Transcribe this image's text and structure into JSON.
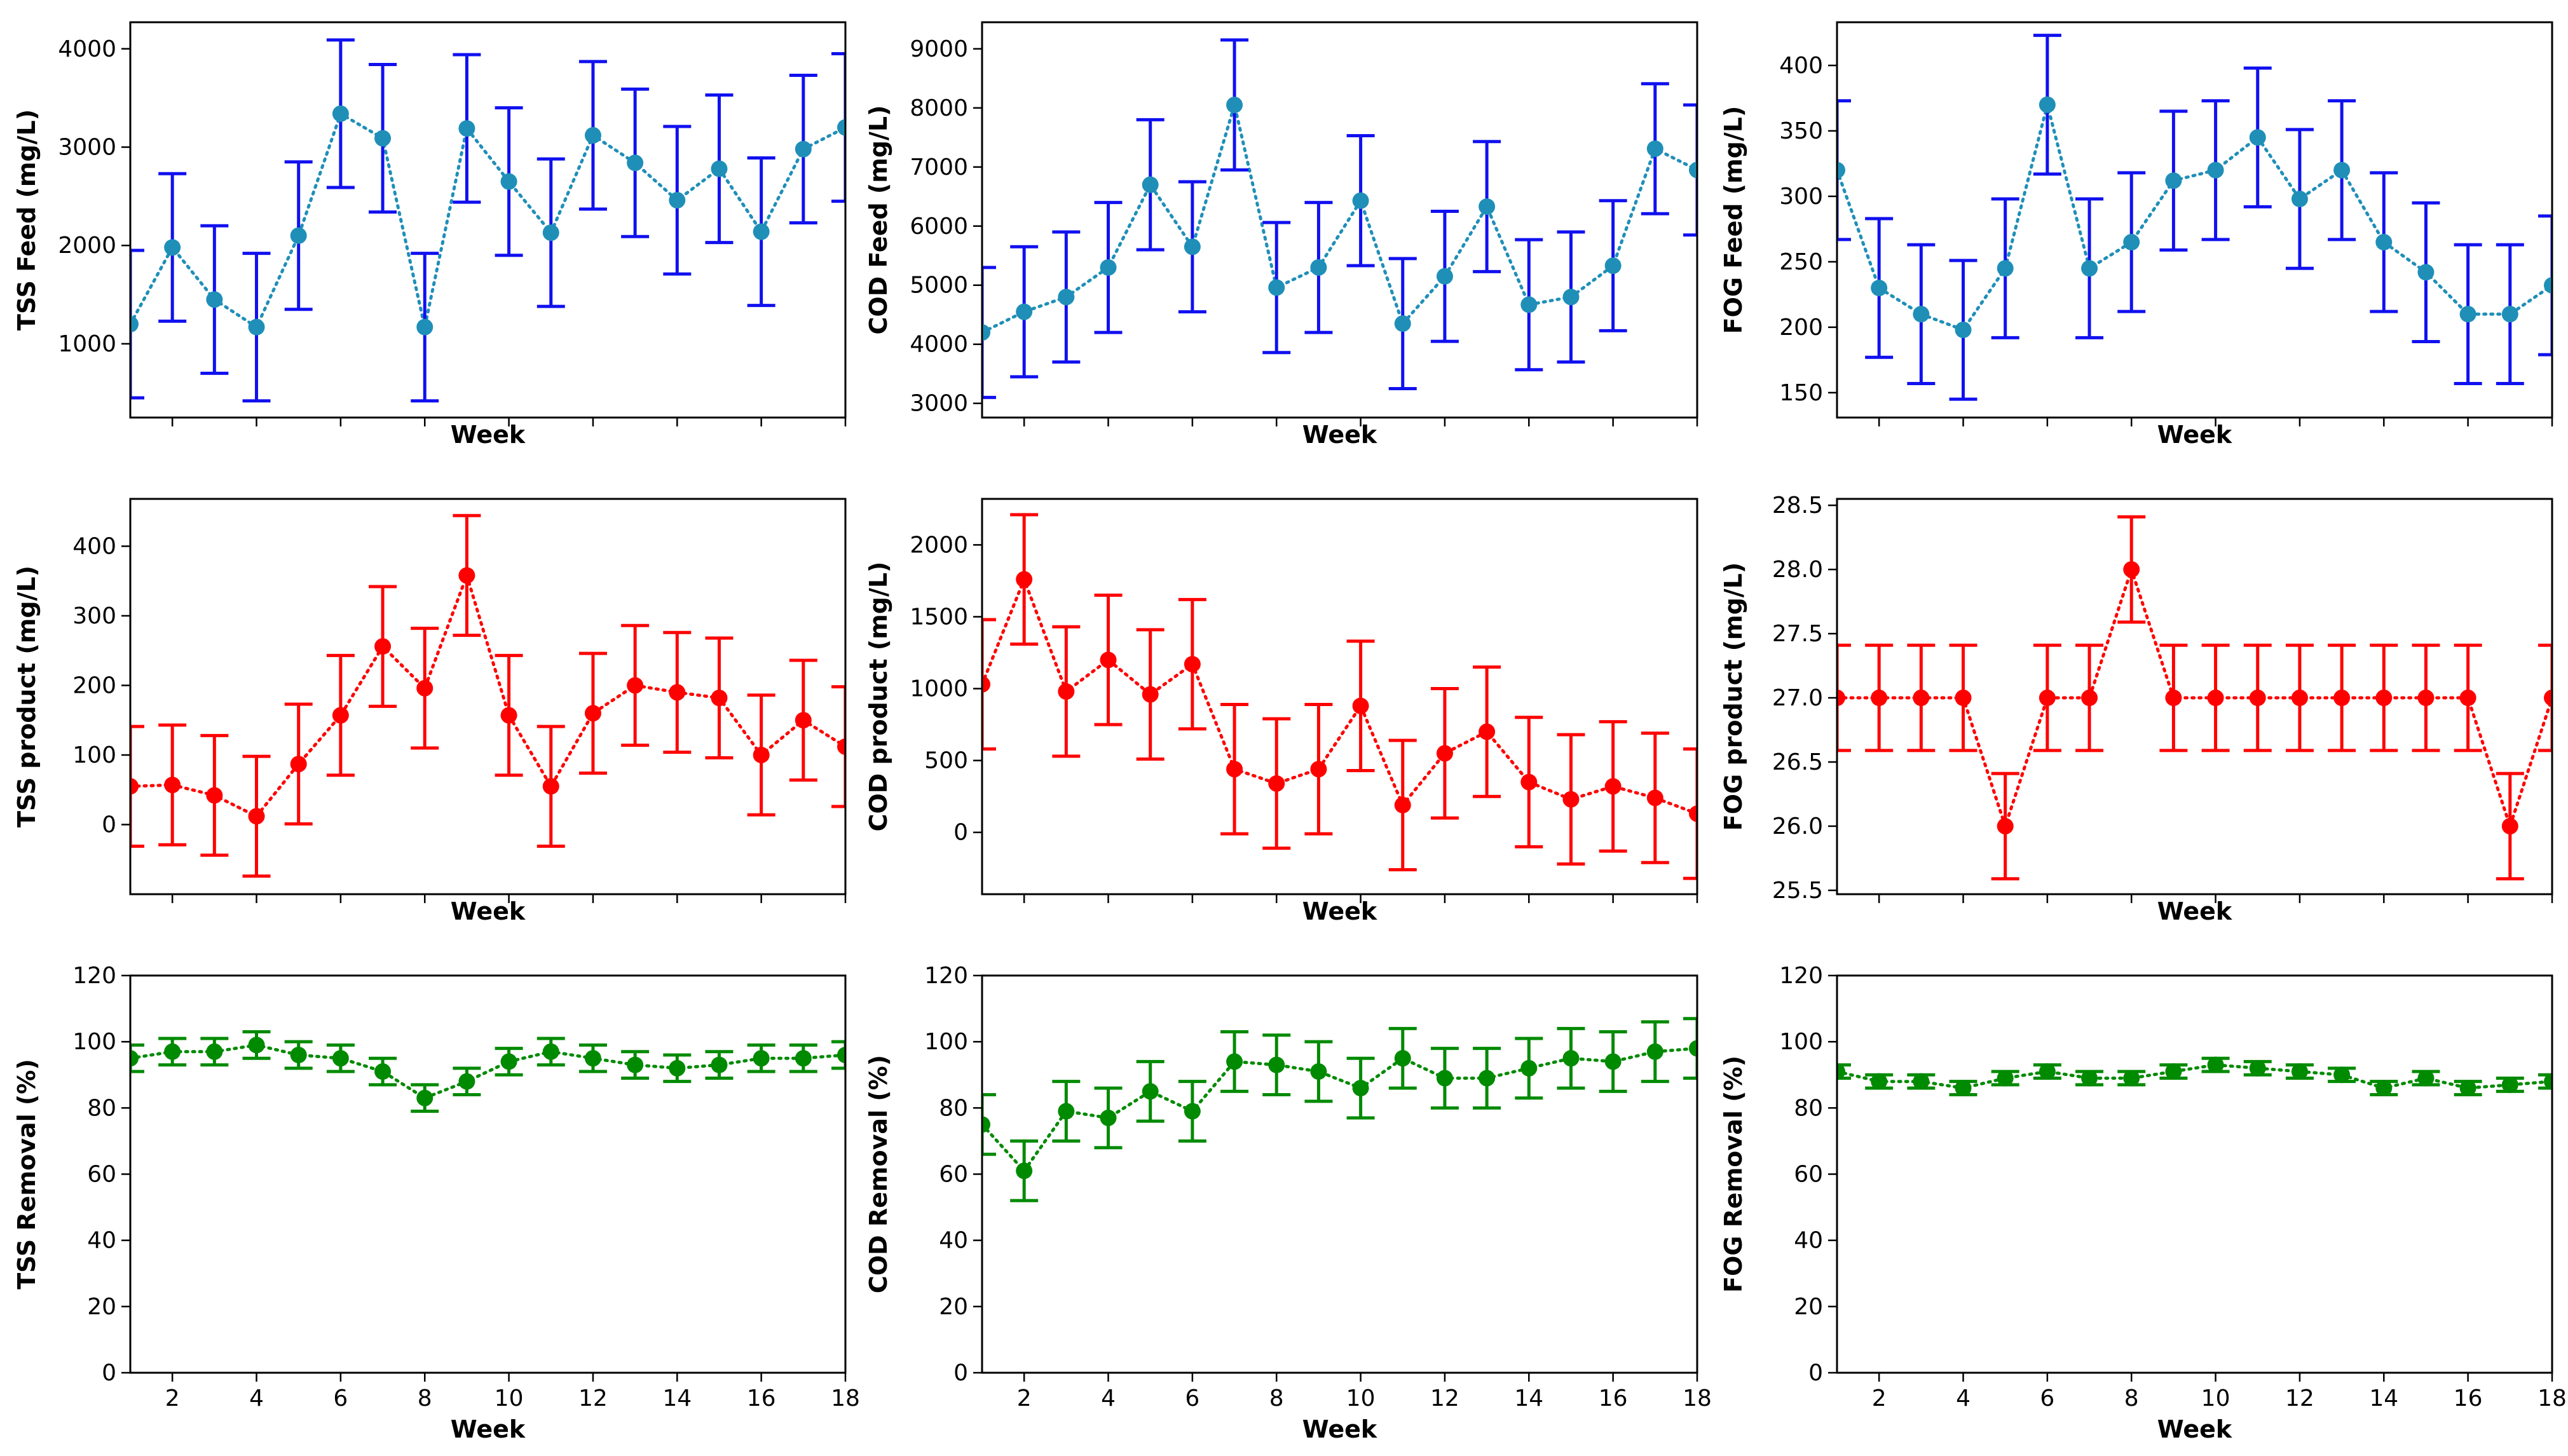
{
  "colors": {
    "feed_line": "#1f8fb8",
    "feed_error": "#1010f0",
    "product": "#ff0000",
    "removal": "#008a00"
  },
  "chart_data": [
    {
      "id": "tss-feed",
      "type": "line",
      "ylabel": "TSS Feed (mg/L)",
      "xlabel": "Week",
      "xlim": [
        1,
        18
      ],
      "ylim": [
        250,
        4270
      ],
      "yticks": [
        1000,
        2000,
        3000,
        4000
      ],
      "xticks": [
        2,
        4,
        6,
        8,
        10,
        12,
        14,
        16,
        18
      ],
      "show_xticklabels": false,
      "line_color": "#1f8fb8",
      "error_color": "#1010f0",
      "x": [
        1,
        2,
        3,
        4,
        5,
        6,
        7,
        8,
        9,
        10,
        11,
        12,
        13,
        14,
        15,
        16,
        17,
        18
      ],
      "values": [
        1200,
        1980,
        1450,
        1170,
        2100,
        3340,
        3090,
        1170,
        3190,
        2650,
        2130,
        3120,
        2840,
        2460,
        2780,
        2140,
        2980,
        3200
      ],
      "errors": [
        750,
        750,
        750,
        750,
        750,
        750,
        750,
        750,
        750,
        750,
        750,
        750,
        750,
        750,
        750,
        750,
        750,
        750
      ]
    },
    {
      "id": "cod-feed",
      "type": "line",
      "ylabel": "COD Feed (mg/L)",
      "xlabel": "Week",
      "xlim": [
        1,
        18
      ],
      "ylim": [
        2760,
        9450
      ],
      "yticks": [
        3000,
        4000,
        5000,
        6000,
        7000,
        8000,
        9000
      ],
      "xticks": [
        2,
        4,
        6,
        8,
        10,
        12,
        14,
        16,
        18
      ],
      "show_xticklabels": false,
      "line_color": "#1f8fb8",
      "error_color": "#1010f0",
      "x": [
        1,
        2,
        3,
        4,
        5,
        6,
        7,
        8,
        9,
        10,
        11,
        12,
        13,
        14,
        15,
        16,
        17,
        18
      ],
      "values": [
        4200,
        4550,
        4800,
        5300,
        6700,
        5650,
        8050,
        4960,
        5300,
        6430,
        4350,
        5150,
        6330,
        4670,
        4800,
        5330,
        7310,
        6950
      ],
      "errors": [
        1100,
        1100,
        1100,
        1100,
        1100,
        1100,
        1100,
        1100,
        1100,
        1100,
        1100,
        1100,
        1100,
        1100,
        1100,
        1100,
        1100,
        1100
      ]
    },
    {
      "id": "fog-feed",
      "type": "line",
      "ylabel": "FOG Feed (mg/L)",
      "xlabel": "Week",
      "xlim": [
        1,
        18
      ],
      "ylim": [
        131,
        433
      ],
      "yticks": [
        150,
        200,
        250,
        300,
        350,
        400
      ],
      "xticks": [
        2,
        4,
        6,
        8,
        10,
        12,
        14,
        16,
        18
      ],
      "show_xticklabels": false,
      "line_color": "#1f8fb8",
      "error_color": "#1010f0",
      "x": [
        1,
        2,
        3,
        4,
        5,
        6,
        7,
        8,
        9,
        10,
        11,
        12,
        13,
        14,
        15,
        16,
        17,
        18
      ],
      "values": [
        320,
        230,
        210,
        198,
        245,
        370,
        245,
        265,
        312,
        320,
        345,
        298,
        320,
        265,
        242,
        210,
        210,
        232
      ],
      "errors": [
        53,
        53,
        53,
        53,
        53,
        53,
        53,
        53,
        53,
        53,
        53,
        53,
        53,
        53,
        53,
        53,
        53,
        53
      ]
    },
    {
      "id": "tss-product",
      "type": "line",
      "ylabel": "TSS product (mg/L)",
      "xlabel": "Week",
      "xlim": [
        1,
        18
      ],
      "ylim": [
        -100,
        468
      ],
      "yticks": [
        0,
        100,
        200,
        300,
        400
      ],
      "xticks": [
        2,
        4,
        6,
        8,
        10,
        12,
        14,
        16,
        18
      ],
      "show_xticklabels": false,
      "line_color": "#ff0000",
      "error_color": "#ff0000",
      "x": [
        1,
        2,
        3,
        4,
        5,
        6,
        7,
        8,
        9,
        10,
        11,
        12,
        13,
        14,
        15,
        16,
        17,
        18
      ],
      "values": [
        55,
        57,
        42,
        12,
        87,
        157,
        256,
        196,
        358,
        157,
        55,
        160,
        200,
        190,
        182,
        100,
        150,
        112
      ],
      "errors": [
        86,
        86,
        86,
        86,
        86,
        86,
        86,
        86,
        86,
        86,
        86,
        86,
        86,
        86,
        86,
        86,
        86,
        86
      ]
    },
    {
      "id": "cod-product",
      "type": "line",
      "ylabel": "COD product (mg/L)",
      "xlabel": "Week",
      "xlim": [
        1,
        18
      ],
      "ylim": [
        -430,
        2320
      ],
      "yticks": [
        0,
        500,
        1000,
        1500,
        2000
      ],
      "xticks": [
        2,
        4,
        6,
        8,
        10,
        12,
        14,
        16,
        18
      ],
      "show_xticklabels": false,
      "line_color": "#ff0000",
      "error_color": "#ff0000",
      "x": [
        1,
        2,
        3,
        4,
        5,
        6,
        7,
        8,
        9,
        10,
        11,
        12,
        13,
        14,
        15,
        16,
        17,
        18
      ],
      "values": [
        1030,
        1760,
        980,
        1200,
        960,
        1170,
        440,
        340,
        440,
        880,
        190,
        550,
        700,
        350,
        230,
        320,
        240,
        130
      ],
      "errors": [
        450,
        450,
        450,
        450,
        450,
        450,
        450,
        450,
        450,
        450,
        450,
        450,
        450,
        450,
        450,
        450,
        450,
        450
      ]
    },
    {
      "id": "fog-product",
      "type": "line",
      "ylabel": "FOG product (mg/L)",
      "xlabel": "Week",
      "xlim": [
        1,
        18
      ],
      "ylim": [
        25.47,
        28.55
      ],
      "yticks": [
        25.5,
        26.0,
        26.5,
        27.0,
        27.5,
        28.0,
        28.5
      ],
      "ytick_labels": [
        "25.5",
        "26.0",
        "26.5",
        "27.0",
        "27.5",
        "28.0",
        "28.5"
      ],
      "xticks": [
        2,
        4,
        6,
        8,
        10,
        12,
        14,
        16,
        18
      ],
      "show_xticklabels": false,
      "line_color": "#ff0000",
      "error_color": "#ff0000",
      "x": [
        1,
        2,
        3,
        4,
        5,
        6,
        7,
        8,
        9,
        10,
        11,
        12,
        13,
        14,
        15,
        16,
        17,
        18
      ],
      "values": [
        27,
        27,
        27,
        27,
        26,
        27,
        27,
        28,
        27,
        27,
        27,
        27,
        27,
        27,
        27,
        27,
        26,
        27
      ],
      "errors": [
        0.41,
        0.41,
        0.41,
        0.41,
        0.41,
        0.41,
        0.41,
        0.41,
        0.41,
        0.41,
        0.41,
        0.41,
        0.41,
        0.41,
        0.41,
        0.41,
        0.41,
        0.41
      ]
    },
    {
      "id": "tss-removal",
      "type": "line",
      "ylabel": "TSS Removal (%)",
      "xlabel": "Week",
      "xlim": [
        1,
        18
      ],
      "ylim": [
        0,
        120
      ],
      "yticks": [
        0,
        20,
        40,
        60,
        80,
        100,
        120
      ],
      "xticks": [
        2,
        4,
        6,
        8,
        10,
        12,
        14,
        16,
        18
      ],
      "show_xticklabels": true,
      "line_color": "#008a00",
      "error_color": "#008a00",
      "x": [
        1,
        2,
        3,
        4,
        5,
        6,
        7,
        8,
        9,
        10,
        11,
        12,
        13,
        14,
        15,
        16,
        17,
        18
      ],
      "values": [
        95,
        97,
        97,
        99,
        96,
        95,
        91,
        83,
        88,
        94,
        97,
        95,
        93,
        92,
        93,
        95,
        95,
        96
      ],
      "errors": [
        4,
        4,
        4,
        4,
        4,
        4,
        4,
        4,
        4,
        4,
        4,
        4,
        4,
        4,
        4,
        4,
        4,
        4
      ]
    },
    {
      "id": "cod-removal",
      "type": "line",
      "ylabel": "COD Removal (%)",
      "xlabel": "Week",
      "xlim": [
        1,
        18
      ],
      "ylim": [
        0,
        120
      ],
      "yticks": [
        0,
        20,
        40,
        60,
        80,
        100,
        120
      ],
      "xticks": [
        2,
        4,
        6,
        8,
        10,
        12,
        14,
        16,
        18
      ],
      "show_xticklabels": true,
      "line_color": "#008a00",
      "error_color": "#008a00",
      "x": [
        1,
        2,
        3,
        4,
        5,
        6,
        7,
        8,
        9,
        10,
        11,
        12,
        13,
        14,
        15,
        16,
        17,
        18
      ],
      "values": [
        75,
        61,
        79,
        77,
        85,
        79,
        94,
        93,
        91,
        86,
        95,
        89,
        89,
        92,
        95,
        94,
        97,
        98
      ],
      "errors": [
        9,
        9,
        9,
        9,
        9,
        9,
        9,
        9,
        9,
        9,
        9,
        9,
        9,
        9,
        9,
        9,
        9,
        9
      ]
    },
    {
      "id": "fog-removal",
      "type": "line",
      "ylabel": "FOG Removal (%)",
      "xlabel": "Week",
      "xlim": [
        1,
        18
      ],
      "ylim": [
        0,
        120
      ],
      "yticks": [
        0,
        20,
        40,
        60,
        80,
        100,
        120
      ],
      "xticks": [
        2,
        4,
        6,
        8,
        10,
        12,
        14,
        16,
        18
      ],
      "show_xticklabels": true,
      "line_color": "#008a00",
      "error_color": "#008a00",
      "x": [
        1,
        2,
        3,
        4,
        5,
        6,
        7,
        8,
        9,
        10,
        11,
        12,
        13,
        14,
        15,
        16,
        17,
        18
      ],
      "values": [
        91,
        88,
        88,
        86,
        89,
        91,
        89,
        89,
        91,
        93,
        92,
        91,
        90,
        86,
        89,
        86,
        87,
        88
      ],
      "errors": [
        2,
        2,
        2,
        2,
        2,
        2,
        2,
        2,
        2,
        2,
        2,
        2,
        2,
        2,
        2,
        2,
        2,
        2
      ]
    }
  ]
}
